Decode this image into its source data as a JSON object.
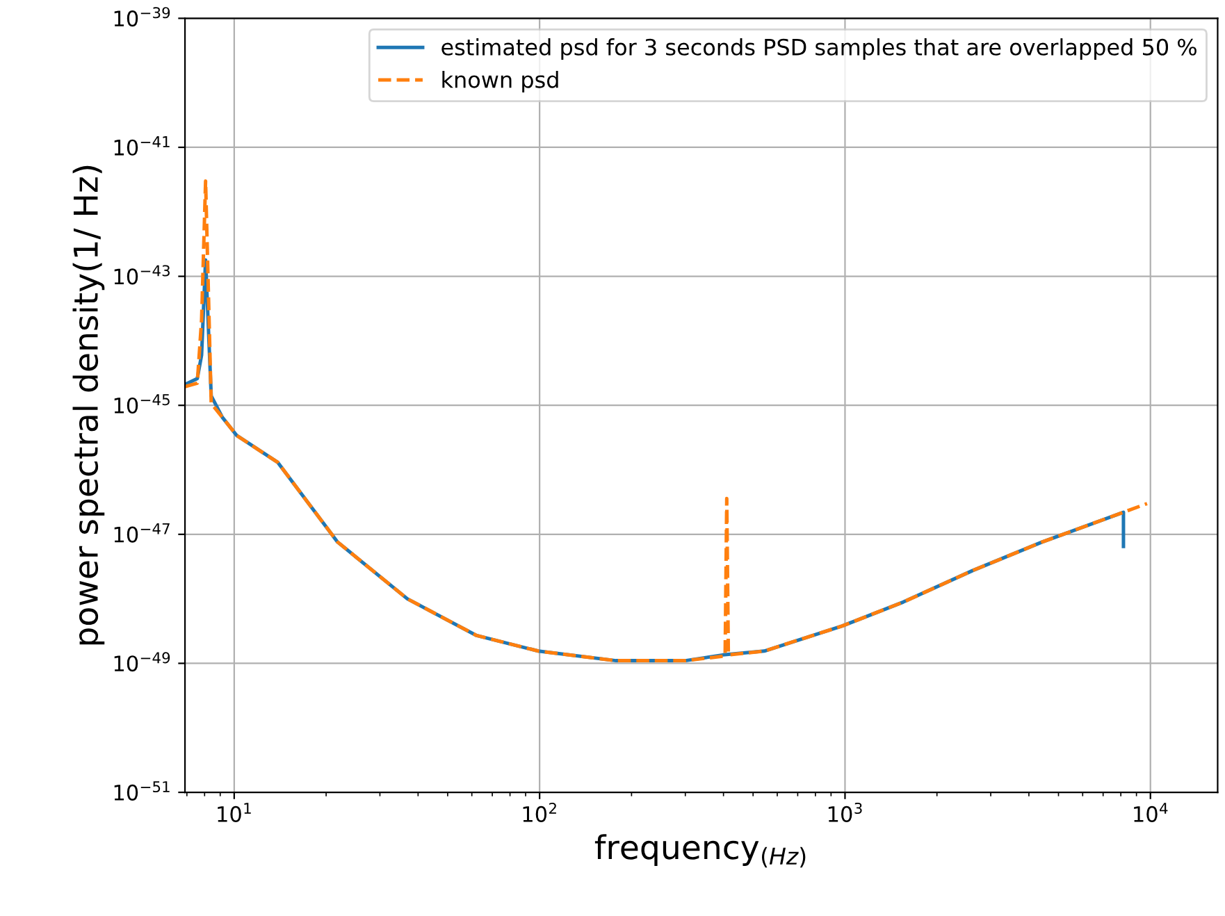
{
  "chart_data": {
    "type": "line",
    "xlabel": "frequency$_{(Hz)}$",
    "ylabel": "power spectral density(1/ Hz)",
    "log": "xy",
    "grid": true,
    "legend": "top right",
    "xlim": [
      6.9,
      16600
    ],
    "xticks": [
      {
        "value": 10,
        "label": "10$^{1}$"
      },
      {
        "value": 100,
        "label": "10$^{2}$"
      },
      {
        "value": 1000,
        "label": "10$^{3}$"
      },
      {
        "value": 10000,
        "label": "10$^{4}$"
      }
    ],
    "ylim": [
      1e-51,
      1e-39
    ],
    "yticks": [
      {
        "value": 1e-51,
        "label": "10$^{−51}$"
      },
      {
        "value": 1e-49,
        "label": "10$^{−49}$"
      },
      {
        "value": 1e-47,
        "label": "10$^{−47}$"
      },
      {
        "value": 1e-45,
        "label": "10$^{−45}$"
      },
      {
        "value": 1e-43,
        "label": "10$^{−43}$"
      },
      {
        "value": 1e-41,
        "label": "10$^{−41}$"
      },
      {
        "value": 1e-39,
        "label": "10$^{−39}$"
      }
    ],
    "series": [
      {
        "name": "estimated psd for 3 seconds PSD samples that are overlapped 50 %",
        "color": "#1f77b4",
        "line_style": "solid",
        "x": [
          6.9,
          7.57,
          7.82,
          8.06,
          8.41,
          9.15,
          10.2,
          13.9,
          21.8,
          36.9,
          62.2,
          99,
          178,
          300,
          398,
          544,
          980,
          1550,
          2620,
          4420,
          8160,
          8160
        ],
        "values": [
          2.1e-45,
          2.6e-45,
          6e-45,
          1.8e-43,
          1.4e-45,
          6.5e-46,
          3.4e-46,
          1.3e-46,
          7.6e-48,
          1e-48,
          2.7e-49,
          1.55e-49,
          1.1e-49,
          1.1e-49,
          1.35e-49,
          1.55e-49,
          3.8e-49,
          8.9e-49,
          2.75e-48,
          7.6e-48,
          2.2e-47,
          6.5e-48
        ]
      },
      {
        "name": "known psd",
        "color": "#ff7f0e",
        "line_style": "dashed",
        "x": [
          6.9,
          7.57,
          7.82,
          8.06,
          8.41,
          9.15,
          10.2,
          13.9,
          21.8,
          36.9,
          62.2,
          99,
          178,
          300,
          405,
          410,
          415,
          544,
          980,
          1550,
          2620,
          4420,
          8160,
          9750
        ],
        "values": [
          1.95e-45,
          2.2e-45,
          2.1e-44,
          3e-42,
          1.07e-45,
          6.5e-46,
          3.4e-46,
          1.3e-46,
          7.6e-48,
          1e-48,
          2.7e-49,
          1.55e-49,
          1.1e-49,
          1.1e-49,
          1.3e-49,
          3.6e-47,
          1.35e-49,
          1.55e-49,
          3.8e-49,
          8.9e-49,
          2.75e-48,
          7.6e-48,
          2.2e-47,
          3e-47
        ]
      }
    ]
  }
}
